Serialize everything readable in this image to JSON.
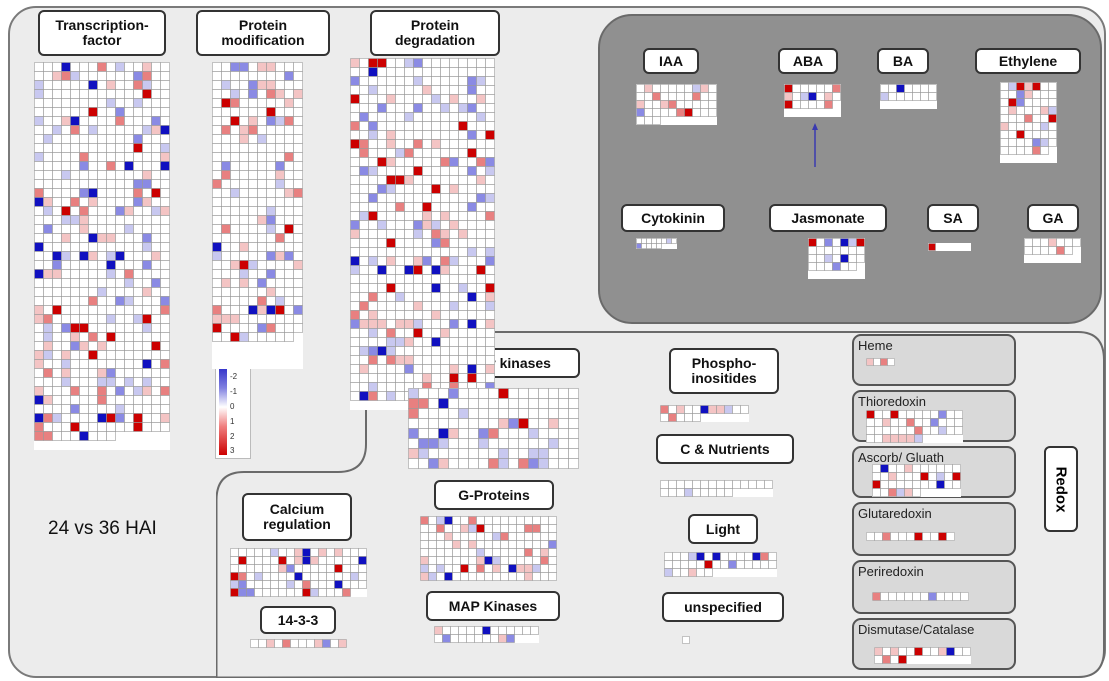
{
  "caption": "24 vs 36 HAI",
  "colors": {
    "main_panel_bg": "#ececec",
    "hormone_panel_bg": "#909090",
    "redox_box_bg": "#d9d9d9",
    "up_color": "#cc0000",
    "down_color": "#1010c0"
  },
  "legend": {
    "ticks": [
      "-3",
      "-2",
      "-1",
      "0",
      "1",
      "2",
      "3"
    ],
    "scale": "log2 fold change: blue = down, white = 0, red = up"
  },
  "categories": {
    "transcription_factor": "Transcription-\nfactor",
    "protein_modification": "Protein\nmodification",
    "protein_degradation": "Protein\ndegradation",
    "receptor_kinases": "Receptor kinases",
    "phosphoinositides": "Phospho-\ninositides",
    "c_nutrients": "C & Nutrients",
    "light": "Light",
    "unspecified": "unspecified",
    "g_proteins": "G-Proteins",
    "map_kinases": "MAP Kinases",
    "calcium_regulation": "Calcium\nregulation",
    "fourteen_three_three": "14-3-3"
  },
  "hormones": {
    "iaa": "IAA",
    "aba": "ABA",
    "ba": "BA",
    "ethylene": "Ethylene",
    "cytokinin": "Cytokinin",
    "jasmonate": "Jasmonate",
    "sa": "SA",
    "ga": "GA"
  },
  "redox": {
    "title": "Redox",
    "heme": "Heme",
    "thioredoxin": "Thioredoxin",
    "ascorb_gluath": "Ascorb/ Gluath",
    "glutaredoxin": "Glutaredoxin",
    "periredoxin": "Periredoxin",
    "dismutase_catalase": "Dismutase/Catalase"
  }
}
